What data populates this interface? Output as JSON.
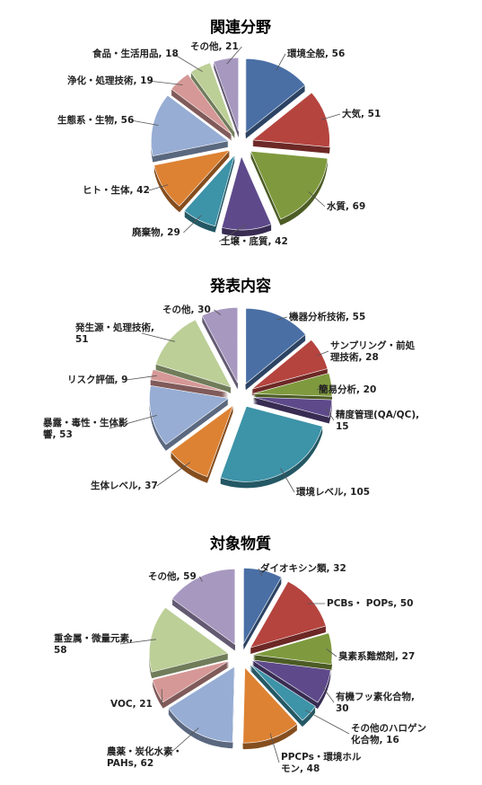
{
  "chart_data": [
    {
      "type": "pie",
      "title": "関連分野",
      "categories": [
        "環境全般",
        "大気",
        "水質",
        "土壌・底質",
        "廃棄物",
        "ヒト・生体",
        "生態系・生物",
        "浄化・処理技術",
        "食品・生活用品",
        "その他"
      ],
      "values": [
        56,
        51,
        69,
        42,
        29,
        42,
        56,
        19,
        18,
        21
      ],
      "labels": [
        [
          "環境全般, 56"
        ],
        [
          "大気, 51"
        ],
        [
          "水質, 69"
        ],
        [
          "土壌・底質, 42"
        ],
        [
          "廃棄物, 29"
        ],
        [
          "ヒト・生体, 42"
        ],
        [
          "生態系・生物, 56"
        ],
        [
          "浄化・処理技術, 19"
        ],
        [
          "食品・生活用品, 18"
        ],
        [
          "その他, 21"
        ]
      ],
      "colors": [
        "#4a6fa5",
        "#b5443f",
        "#7f9a3e",
        "#5e4a8b",
        "#3d93a8",
        "#dd8233",
        "#97add4",
        "#d59896",
        "#bccf97",
        "#a798c0"
      ]
    },
    {
      "type": "pie",
      "title": "発表内容",
      "categories": [
        "機器分析技術",
        "サンプリング・前処理技術",
        "簡易分析",
        "精度管理(QA/QC)",
        "環境レベル",
        "生体レベル",
        "暴露・毒性・生体影響",
        "リスク評価",
        "発生源・処理技術",
        "その他"
      ],
      "values": [
        55,
        28,
        20,
        15,
        105,
        37,
        53,
        9,
        51,
        30
      ],
      "labels": [
        [
          "機器分析技術, 55"
        ],
        [
          "サンプリング・前処",
          "理技術, 28"
        ],
        [
          "簡易分析, 20"
        ],
        [
          "精度管理(QA/QC),",
          "15"
        ],
        [
          "環境レベル, 105"
        ],
        [
          "生体レベル, 37"
        ],
        [
          "暴露・毒性・生体影",
          "響, 53"
        ],
        [
          "リスク評価, 9"
        ],
        [
          "発生源・処理技術,",
          "51"
        ],
        [
          "その他, 30"
        ]
      ],
      "colors": [
        "#4a6fa5",
        "#b5443f",
        "#7f9a3e",
        "#5e4a8b",
        "#3d93a8",
        "#dd8233",
        "#97add4",
        "#d59896",
        "#bccf97",
        "#a798c0"
      ]
    },
    {
      "type": "pie",
      "title": "対象物質",
      "categories": [
        "ダイオキシン類",
        "PCBs・ POPs",
        "臭素系難燃剤",
        "有機フッ素化合物",
        "その他のハロゲン化合物",
        "PPCPs・環境ホルモン",
        "農薬・炭化水素・PAHs",
        "VOC",
        "重金属・微量元素",
        "その他"
      ],
      "values": [
        32,
        50,
        27,
        30,
        16,
        48,
        62,
        21,
        58,
        59
      ],
      "labels": [
        [
          "ダイオキシン類, 32"
        ],
        [
          "PCBs・ POPs, 50"
        ],
        [
          "臭素系難燃剤, 27"
        ],
        [
          "有機フッ素化合物,",
          "30"
        ],
        [
          "その他のハロゲン",
          "化合物, 16"
        ],
        [
          "PPCPs・環境ホル",
          "モン, 48"
        ],
        [
          "農薬・炭化水素・",
          "PAHs, 62"
        ],
        [
          "VOC, 21"
        ],
        [
          "重金属・微量元素,",
          "58"
        ],
        [
          "その他, 59"
        ]
      ],
      "colors": [
        "#4a6fa5",
        "#b5443f",
        "#7f9a3e",
        "#5e4a8b",
        "#3d93a8",
        "#dd8233",
        "#97add4",
        "#d59896",
        "#bccf97",
        "#a798c0"
      ]
    }
  ]
}
